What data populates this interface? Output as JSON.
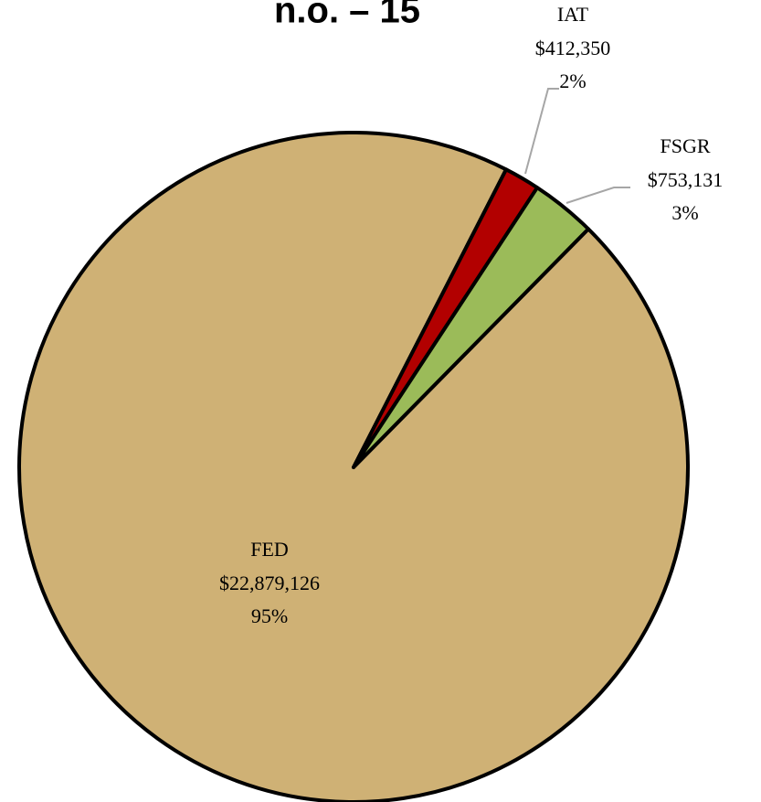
{
  "chart_data": {
    "type": "pie",
    "title": "n.o. – 15",
    "categories": [
      "FED",
      "IAT",
      "FSGR"
    ],
    "values": [
      22879126,
      412350,
      753131
    ],
    "value_labels": [
      "$22,879,126",
      "$412,350",
      "$753,131"
    ],
    "percent_labels": [
      "95%",
      "2%",
      "3%"
    ],
    "colors": [
      "#cfb175",
      "#b20000",
      "#9bbb59"
    ]
  }
}
